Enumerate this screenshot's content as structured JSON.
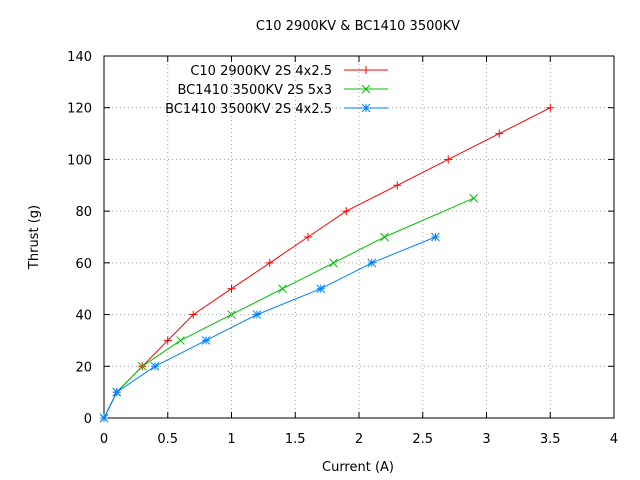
{
  "chart_data": {
    "type": "line",
    "title": "C10 2900KV & BC1410 3500KV",
    "xlabel": "Current (A)",
    "ylabel": "Thrust (g)",
    "xlim": [
      0,
      4
    ],
    "ylim": [
      0,
      140
    ],
    "xticks": [
      "0",
      "0.5",
      "1",
      "1.5",
      "2",
      "2.5",
      "3",
      "3.5",
      "4"
    ],
    "yticks": [
      "0",
      "20",
      "40",
      "60",
      "80",
      "100",
      "120",
      "140"
    ],
    "grid": true,
    "legend_position": "top-left",
    "series": [
      {
        "name": "C10 2900KV 2S 4x2.5",
        "color": "#ff0000",
        "marker": "plus",
        "x": [
          0,
          0.1,
          0.3,
          0.5,
          0.7,
          1.0,
          1.3,
          1.6,
          1.9,
          2.3,
          2.7,
          3.1,
          3.5
        ],
        "y": [
          0,
          10,
          20,
          30,
          40,
          50,
          60,
          70,
          80,
          90,
          100,
          110,
          120
        ]
      },
      {
        "name": "BC1410 3500KV 2S 5x3",
        "color": "#00c000",
        "marker": "cross",
        "x": [
          0,
          0.1,
          0.3,
          0.6,
          1.0,
          1.4,
          1.8,
          2.2,
          2.9
        ],
        "y": [
          0,
          10,
          20,
          30,
          40,
          50,
          60,
          70,
          85
        ]
      },
      {
        "name": "BC1410 3500KV 2S 4x2.5",
        "color": "#0080ff",
        "marker": "star",
        "x": [
          0,
          0.1,
          0.4,
          0.8,
          1.2,
          1.7,
          2.1,
          2.6
        ],
        "y": [
          0,
          10,
          20,
          30,
          40,
          50,
          60,
          70
        ]
      }
    ]
  }
}
